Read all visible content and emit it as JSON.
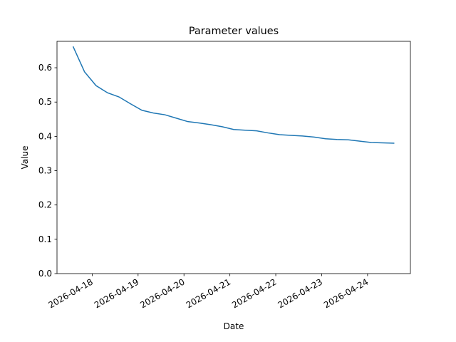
{
  "chart_data": {
    "type": "line",
    "title": "Parameter values",
    "x_label": "Date",
    "y_label": "Value",
    "x": [
      "2026-04-17T14:00",
      "2026-04-17T20:00",
      "2026-04-18T02:00",
      "2026-04-18T08:00",
      "2026-04-18T14:00",
      "2026-04-18T20:00",
      "2026-04-19T02:00",
      "2026-04-19T08:00",
      "2026-04-19T14:00",
      "2026-04-19T20:00",
      "2026-04-20T02:00",
      "2026-04-20T08:00",
      "2026-04-20T14:00",
      "2026-04-20T20:00",
      "2026-04-21T02:00",
      "2026-04-21T08:00",
      "2026-04-21T14:00",
      "2026-04-21T20:00",
      "2026-04-22T02:00",
      "2026-04-22T08:00",
      "2026-04-22T14:00",
      "2026-04-22T20:00",
      "2026-04-23T02:00",
      "2026-04-23T08:00",
      "2026-04-23T14:00",
      "2026-04-23T20:00",
      "2026-04-24T02:00",
      "2026-04-24T08:00",
      "2026-04-24T14:00"
    ],
    "series": [
      {
        "color": "#1f77b4",
        "values": [
          0.662,
          0.588,
          0.548,
          0.527,
          0.515,
          0.495,
          0.476,
          0.468,
          0.463,
          0.453,
          0.443,
          0.439,
          0.434,
          0.428,
          0.42,
          0.418,
          0.416,
          0.41,
          0.405,
          0.403,
          0.401,
          0.398,
          0.393,
          0.391,
          0.39,
          0.386,
          0.382,
          0.381,
          0.38
        ]
      }
    ],
    "xlim": [
      "2026-04-17T05:36",
      "2026-04-24T22:24"
    ],
    "xticks": [
      "2026-04-18",
      "2026-04-19",
      "2026-04-20",
      "2026-04-21",
      "2026-04-22",
      "2026-04-23",
      "2026-04-24"
    ],
    "ylim": [
      0,
      0.677
    ],
    "yticks": [
      {
        "value": 0,
        "label": "0.0"
      },
      0.1,
      0.2,
      0.3,
      0.4,
      0.5,
      0.6
    ]
  }
}
